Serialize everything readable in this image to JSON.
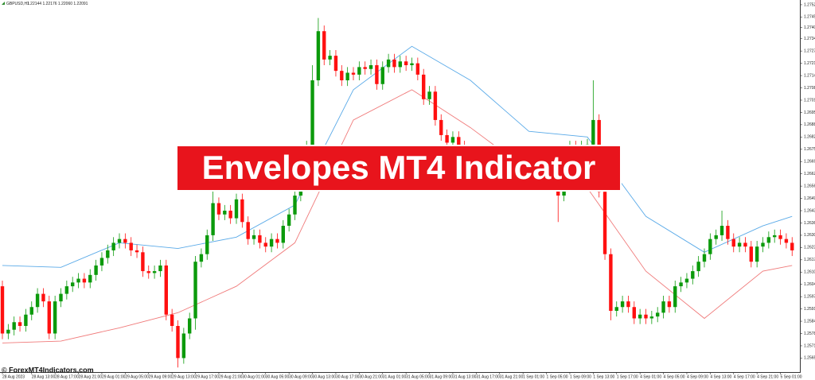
{
  "chart_data": {
    "type": "candlestick",
    "symbol": "GBPUSD,H1",
    "ohlc_header": "1.22144 1.22176 1.22060 1.22091",
    "up_color": "#0b9a0b",
    "down_color": "#ff1010",
    "open": [
      1.2603,
      1.2578,
      1.258,
      1.2584,
      1.2582,
      1.2588,
      1.2592,
      1.2599,
      1.2595,
      1.2578,
      1.2595,
      1.2599,
      1.2603,
      1.2605,
      1.2607,
      1.2605,
      1.2609,
      1.2614,
      1.2618,
      1.2622,
      1.2626,
      1.2628,
      1.2626,
      1.2622,
      1.2621,
      1.2611,
      1.261,
      1.2611,
      1.2614,
      1.2588,
      1.2582,
      1.2565,
      1.2578,
      1.2586,
      1.2616,
      1.262,
      1.263,
      1.2647,
      1.2641,
      1.2643,
      1.2639,
      1.2649,
      1.2637,
      1.2628,
      1.263,
      1.2626,
      1.2624,
      1.2628,
      1.2626,
      1.2635,
      1.2641,
      1.2651,
      1.267,
      1.2677,
      1.2712,
      1.2738,
      1.2723,
      1.2725,
      1.2717,
      1.2712,
      1.2716,
      1.2715,
      1.2719,
      1.2718,
      1.272,
      1.271,
      1.2719,
      1.2723,
      1.2719,
      1.2722,
      1.272,
      1.2721,
      1.2715,
      1.2702,
      1.2706,
      1.2691,
      1.2683,
      1.2679,
      1.2682,
      1.2677,
      1.267,
      1.2666,
      1.2668,
      1.2664,
      1.2666,
      1.2662,
      1.2664,
      1.2666,
      1.2668,
      1.2664,
      1.2666,
      1.2662,
      1.266,
      1.2664,
      1.2668,
      1.2666,
      1.2651,
      1.2674,
      1.2677,
      1.2675,
      1.2677,
      1.2678,
      1.2691,
      1.2653,
      1.262,
      1.259,
      1.2592,
      1.2595,
      1.2592,
      1.2586,
      1.2588,
      1.2586,
      1.2587,
      1.2589,
      1.2595,
      1.2592,
      1.2603,
      1.2605,
      1.2607,
      1.2611,
      1.2616,
      1.262,
      1.2628,
      1.263,
      1.2635,
      1.2628,
      1.2624,
      1.2626,
      1.2624,
      1.2616,
      1.2624,
      1.2626,
      1.2629,
      1.263,
      1.2628,
      1.2626
    ],
    "high": [
      1.2606,
      1.2583,
      1.2587,
      1.2587,
      1.2591,
      1.2595,
      1.2602,
      1.2602,
      1.2598,
      1.2598,
      1.2602,
      1.2606,
      1.2608,
      1.261,
      1.261,
      1.2612,
      1.2617,
      1.2621,
      1.2625,
      1.2629,
      1.2631,
      1.2631,
      1.2629,
      1.2625,
      1.2624,
      1.2614,
      1.2614,
      1.2617,
      1.2617,
      1.2591,
      1.2585,
      1.2581,
      1.2589,
      1.2619,
      1.2623,
      1.2633,
      1.266,
      1.265,
      1.2646,
      1.2646,
      1.2652,
      1.2652,
      1.264,
      1.2633,
      1.2633,
      1.2629,
      1.2631,
      1.2631,
      1.2638,
      1.2644,
      1.2654,
      1.2673,
      1.268,
      1.272,
      1.2745,
      1.2741,
      1.2728,
      1.2728,
      1.272,
      1.2719,
      1.2719,
      1.2722,
      1.2722,
      1.2723,
      1.2723,
      1.2722,
      1.2726,
      1.2726,
      1.2725,
      1.2725,
      1.2724,
      1.2724,
      1.2718,
      1.2709,
      1.2709,
      1.2694,
      1.2686,
      1.2685,
      1.2685,
      1.268,
      1.2673,
      1.2671,
      1.2671,
      1.2669,
      1.2669,
      1.2667,
      1.2669,
      1.2671,
      1.2671,
      1.2669,
      1.2669,
      1.2665,
      1.2667,
      1.2671,
      1.2671,
      1.2669,
      1.2677,
      1.268,
      1.268,
      1.268,
      1.2681,
      1.2712,
      1.2694,
      1.2656,
      1.2623,
      1.2595,
      1.2598,
      1.2598,
      1.2595,
      1.2591,
      1.2591,
      1.259,
      1.2592,
      1.2598,
      1.2598,
      1.2606,
      1.2608,
      1.261,
      1.2614,
      1.2619,
      1.2623,
      1.2631,
      1.2633,
      1.2643,
      1.2638,
      1.2631,
      1.2629,
      1.2629,
      1.2627,
      1.2627,
      1.2629,
      1.2632,
      1.2633,
      1.2633,
      1.2631,
      1.2629
    ],
    "low": [
      1.2575,
      1.2575,
      1.2577,
      1.2579,
      1.2579,
      1.2585,
      1.2589,
      1.2592,
      1.2575,
      1.2575,
      1.2592,
      1.2596,
      1.26,
      1.2602,
      1.2602,
      1.2602,
      1.2606,
      1.2611,
      1.2615,
      1.2619,
      1.2623,
      1.2623,
      1.2619,
      1.2618,
      1.2608,
      1.2607,
      1.2607,
      1.2608,
      1.2585,
      1.2579,
      1.256,
      1.2562,
      1.2575,
      1.258,
      1.2613,
      1.2617,
      1.2627,
      1.2638,
      1.2638,
      1.2636,
      1.2636,
      1.2634,
      1.2625,
      1.2625,
      1.2623,
      1.2621,
      1.2621,
      1.2623,
      1.2623,
      1.2632,
      1.2638,
      1.2648,
      1.2667,
      1.2674,
      1.2709,
      1.272,
      1.272,
      1.2714,
      1.2709,
      1.2709,
      1.2712,
      1.2712,
      1.2715,
      1.2715,
      1.2707,
      1.2707,
      1.2716,
      1.2716,
      1.2716,
      1.2717,
      1.2717,
      1.2712,
      1.2699,
      1.2699,
      1.2688,
      1.268,
      1.2676,
      1.2676,
      1.2674,
      1.2667,
      1.2663,
      1.2663,
      1.2661,
      1.2661,
      1.2659,
      1.2659,
      1.2661,
      1.2663,
      1.2661,
      1.2661,
      1.2659,
      1.2657,
      1.2657,
      1.2661,
      1.2663,
      1.2637,
      1.2648,
      1.2671,
      1.2672,
      1.2672,
      1.2674,
      1.2675,
      1.265,
      1.2617,
      1.2585,
      1.2587,
      1.2589,
      1.2589,
      1.2583,
      1.2583,
      1.2583,
      1.2583,
      1.2584,
      1.2586,
      1.2589,
      1.2589,
      1.26,
      1.2602,
      1.2604,
      1.2608,
      1.2613,
      1.2617,
      1.2625,
      1.2627,
      1.2625,
      1.2621,
      1.2621,
      1.2621,
      1.2613,
      1.2613,
      1.2621,
      1.2623,
      1.2626,
      1.2625,
      1.2623,
      1.2619
    ],
    "close": [
      1.2578,
      1.258,
      1.2584,
      1.2582,
      1.2588,
      1.2592,
      1.2599,
      1.2595,
      1.2578,
      1.2595,
      1.2599,
      1.2603,
      1.2605,
      1.2607,
      1.2605,
      1.2609,
      1.2614,
      1.2618,
      1.2622,
      1.2626,
      1.2628,
      1.2626,
      1.2622,
      1.2621,
      1.2611,
      1.261,
      1.2611,
      1.2614,
      1.2588,
      1.2582,
      1.2565,
      1.2578,
      1.2586,
      1.2616,
      1.262,
      1.263,
      1.2647,
      1.2641,
      1.2643,
      1.2639,
      1.2649,
      1.2637,
      1.2628,
      1.263,
      1.2626,
      1.2624,
      1.2628,
      1.2626,
      1.2635,
      1.2641,
      1.2651,
      1.267,
      1.2677,
      1.2712,
      1.2738,
      1.2723,
      1.2725,
      1.2717,
      1.2712,
      1.2716,
      1.2715,
      1.2719,
      1.2718,
      1.272,
      1.271,
      1.2719,
      1.2723,
      1.2719,
      1.2722,
      1.272,
      1.2721,
      1.2715,
      1.2702,
      1.2706,
      1.2691,
      1.2683,
      1.2679,
      1.2682,
      1.2677,
      1.267,
      1.2666,
      1.2668,
      1.2664,
      1.2666,
      1.2662,
      1.2664,
      1.2666,
      1.2668,
      1.2664,
      1.2666,
      1.2662,
      1.266,
      1.2664,
      1.2668,
      1.2666,
      1.2651,
      1.2674,
      1.2677,
      1.2675,
      1.2677,
      1.2678,
      1.2691,
      1.2653,
      1.262,
      1.259,
      1.2592,
      1.2595,
      1.2592,
      1.2586,
      1.2588,
      1.2586,
      1.2587,
      1.2589,
      1.2595,
      1.2592,
      1.2603,
      1.2605,
      1.2607,
      1.2611,
      1.2616,
      1.262,
      1.2628,
      1.263,
      1.2635,
      1.2628,
      1.2624,
      1.2626,
      1.2624,
      1.2616,
      1.2624,
      1.2626,
      1.2629,
      1.263,
      1.2628,
      1.2626,
      1.2622
    ],
    "series": [
      {
        "color": "#5aaae8",
        "x": [
          0,
          10,
          20,
          30,
          40,
          50,
          60,
          70,
          80,
          90,
          100,
          110,
          120,
          130,
          135
        ],
        "values": [
          1.2614,
          1.2613,
          1.2626,
          1.2623,
          1.2629,
          1.2646,
          1.2707,
          1.273,
          1.2712,
          1.2685,
          1.2682,
          1.264,
          1.2621,
          1.2635,
          1.264
        ]
      },
      {
        "color": "#f07a7a",
        "x": [
          0,
          10,
          20,
          30,
          40,
          50,
          60,
          70,
          80,
          90,
          100,
          110,
          120,
          130,
          135
        ],
        "values": [
          1.2573,
          1.2574,
          1.2581,
          1.2589,
          1.2603,
          1.2626,
          1.2691,
          1.2707,
          1.2687,
          1.2664,
          1.2655,
          1.2611,
          1.2586,
          1.2611,
          1.2614
        ]
      }
    ],
    "ylim": [
      1.25576,
      1.27545
    ],
    "yticks": [
      {
        "value": 1.2752,
        "label": "1.27520"
      },
      {
        "value": 1.27455,
        "label": "1.27455"
      },
      {
        "value": 1.274,
        "label": "1.27400"
      },
      {
        "value": 1.2734,
        "label": "1.27340"
      },
      {
        "value": 1.27275,
        "label": "1.27275"
      },
      {
        "value": 1.2721,
        "label": "1.27210"
      },
      {
        "value": 1.27145,
        "label": "1.27145"
      },
      {
        "value": 1.2708,
        "label": "1.27080"
      },
      {
        "value": 1.27015,
        "label": "1.27015"
      },
      {
        "value": 1.2695,
        "label": "1.26950"
      },
      {
        "value": 1.26885,
        "label": "1.26885"
      },
      {
        "value": 1.2682,
        "label": "1.26820"
      },
      {
        "value": 1.26755,
        "label": "1.26755"
      },
      {
        "value": 1.2669,
        "label": "1.26690"
      },
      {
        "value": 1.26625,
        "label": "1.26625"
      },
      {
        "value": 1.2656,
        "label": "1.26560"
      },
      {
        "value": 1.26495,
        "label": "1.26495"
      },
      {
        "value": 1.2643,
        "label": "1.26430"
      },
      {
        "value": 1.26365,
        "label": "1.26365"
      },
      {
        "value": 1.263,
        "label": "1.26300"
      },
      {
        "value": 1.26235,
        "label": "1.26235"
      },
      {
        "value": 1.2617,
        "label": "1.26170"
      },
      {
        "value": 1.26105,
        "label": "1.26105"
      },
      {
        "value": 1.2604,
        "label": "1.26040"
      },
      {
        "value": 1.25975,
        "label": "1.25975"
      },
      {
        "value": 1.2591,
        "label": "1.25910"
      },
      {
        "value": 1.25845,
        "label": "1.25845"
      },
      {
        "value": 1.2578,
        "label": "1.25780"
      },
      {
        "value": 1.25715,
        "label": "1.25715"
      },
      {
        "value": 1.2565,
        "label": "1.25650"
      }
    ],
    "xticks": [
      {
        "value": 0,
        "label": "28 Aug 2023"
      },
      {
        "value": 5,
        "label": "28 Aug 13:00"
      },
      {
        "value": 9,
        "label": "28 Aug 17:00"
      },
      {
        "value": 13,
        "label": "28 Aug 21:00"
      },
      {
        "value": 17,
        "label": "29 Aug 01:00"
      },
      {
        "value": 21,
        "label": "29 Aug 05:00"
      },
      {
        "value": 25,
        "label": "29 Aug 09:00"
      },
      {
        "value": 29,
        "label": "29 Aug 13:00"
      },
      {
        "value": 33,
        "label": "29 Aug 17:00"
      },
      {
        "value": 37,
        "label": "29 Aug 21:00"
      },
      {
        "value": 41,
        "label": "30 Aug 01:00"
      },
      {
        "value": 45,
        "label": "30 Aug 05:00"
      },
      {
        "value": 49,
        "label": "30 Aug 09:00"
      },
      {
        "value": 53,
        "label": "30 Aug 13:00"
      },
      {
        "value": 57,
        "label": "30 Aug 17:00"
      },
      {
        "value": 61,
        "label": "30 Aug 21:00"
      },
      {
        "value": 65,
        "label": "31 Aug 01:00"
      },
      {
        "value": 69,
        "label": "31 Aug 05:00"
      },
      {
        "value": 73,
        "label": "31 Aug 09:00"
      },
      {
        "value": 77,
        "label": "31 Aug 13:00"
      },
      {
        "value": 81,
        "label": "31 Aug 17:00"
      },
      {
        "value": 85,
        "label": "31 Aug 21:00"
      },
      {
        "value": 89,
        "label": "1 Sep 01:00"
      },
      {
        "value": 93,
        "label": "1 Sep 05:00"
      },
      {
        "value": 97,
        "label": "1 Sep 09:00"
      },
      {
        "value": 101,
        "label": "1 Sep 13:00"
      },
      {
        "value": 105,
        "label": "1 Sep 17:00"
      },
      {
        "value": 109,
        "label": "4 Sep 01:00"
      },
      {
        "value": 113,
        "label": "4 Sep 05:00"
      },
      {
        "value": 117,
        "label": "4 Sep 09:00"
      },
      {
        "value": 121,
        "label": "4 Sep 13:00"
      },
      {
        "value": 125,
        "label": "4 Sep 17:00"
      },
      {
        "value": 129,
        "label": "4 Sep 21:00"
      },
      {
        "value": 133,
        "label": "5 Sep 01:00"
      }
    ]
  },
  "overlay": {
    "banner": "Envelopes MT4 Indicator",
    "watermark": "© ForexMT4Indicators.com"
  }
}
